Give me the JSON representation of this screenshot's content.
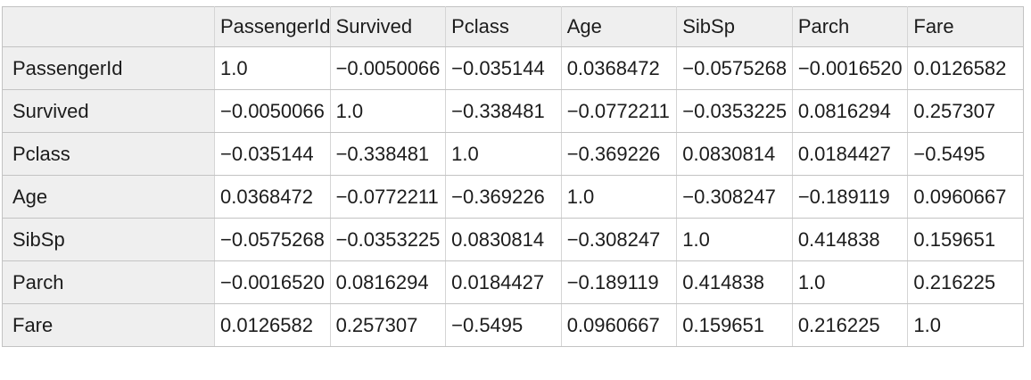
{
  "table": {
    "corner_label": "",
    "columns": [
      "PassengerId",
      "Survived",
      "Pclass",
      "Age",
      "SibSp",
      "Parch",
      "Fare"
    ],
    "rows": [
      {
        "label": "PassengerId",
        "values": [
          "1.0",
          "−0.0050066",
          "−0.035144",
          "0.0368472",
          "−0.0575268",
          "−0.0016520",
          "0.0126582"
        ]
      },
      {
        "label": "Survived",
        "values": [
          "−0.0050066",
          "1.0",
          "−0.338481",
          "−0.0772211",
          "−0.0353225",
          "0.0816294",
          "0.257307"
        ]
      },
      {
        "label": "Pclass",
        "values": [
          "−0.035144",
          "−0.338481",
          "1.0",
          "−0.369226",
          "0.0830814",
          "0.0184427",
          "−0.5495"
        ]
      },
      {
        "label": "Age",
        "values": [
          "0.0368472",
          "−0.0772211",
          "−0.369226",
          "1.0",
          "−0.308247",
          "−0.189119",
          "0.0960667"
        ]
      },
      {
        "label": "SibSp",
        "values": [
          "−0.0575268",
          "−0.0353225",
          "0.0830814",
          "−0.308247",
          "1.0",
          "0.414838",
          "0.159651"
        ]
      },
      {
        "label": "Parch",
        "values": [
          "−0.0016520",
          "0.0816294",
          "0.0184427",
          "−0.189119",
          "0.414838",
          "1.0",
          "0.216225"
        ]
      },
      {
        "label": "Fare",
        "values": [
          "0.0126582",
          "0.257307",
          "−0.5495",
          "0.0960667",
          "0.159651",
          "0.216225",
          "1.0"
        ]
      }
    ]
  },
  "chart_data": {
    "type": "table",
    "title": "",
    "columns": [
      "PassengerId",
      "Survived",
      "Pclass",
      "Age",
      "SibSp",
      "Parch",
      "Fare"
    ],
    "row_labels": [
      "PassengerId",
      "Survived",
      "Pclass",
      "Age",
      "SibSp",
      "Parch",
      "Fare"
    ],
    "matrix": [
      [
        1.0,
        -0.0050066,
        -0.035144,
        0.0368472,
        -0.0575268,
        -0.001652,
        0.0126582
      ],
      [
        -0.0050066,
        1.0,
        -0.338481,
        -0.0772211,
        -0.0353225,
        0.0816294,
        0.257307
      ],
      [
        -0.035144,
        -0.338481,
        1.0,
        -0.369226,
        0.0830814,
        0.0184427,
        -0.5495
      ],
      [
        0.0368472,
        -0.0772211,
        -0.369226,
        1.0,
        -0.308247,
        -0.189119,
        0.0960667
      ],
      [
        -0.0575268,
        -0.0353225,
        0.0830814,
        -0.308247,
        1.0,
        0.414838,
        0.159651
      ],
      [
        -0.001652,
        0.0816294,
        0.0184427,
        -0.189119,
        0.414838,
        1.0,
        0.216225
      ],
      [
        0.0126582,
        0.257307,
        -0.5495,
        0.0960667,
        0.159651,
        0.216225,
        1.0
      ]
    ]
  },
  "colors": {
    "header_bg": "#efefef",
    "cell_bg": "#ffffff",
    "border_horizontal": "#c3c3c3",
    "border_vertical": "#d5d5d5",
    "text": "#1c1c1c",
    "page_bg": "#ffffff"
  }
}
